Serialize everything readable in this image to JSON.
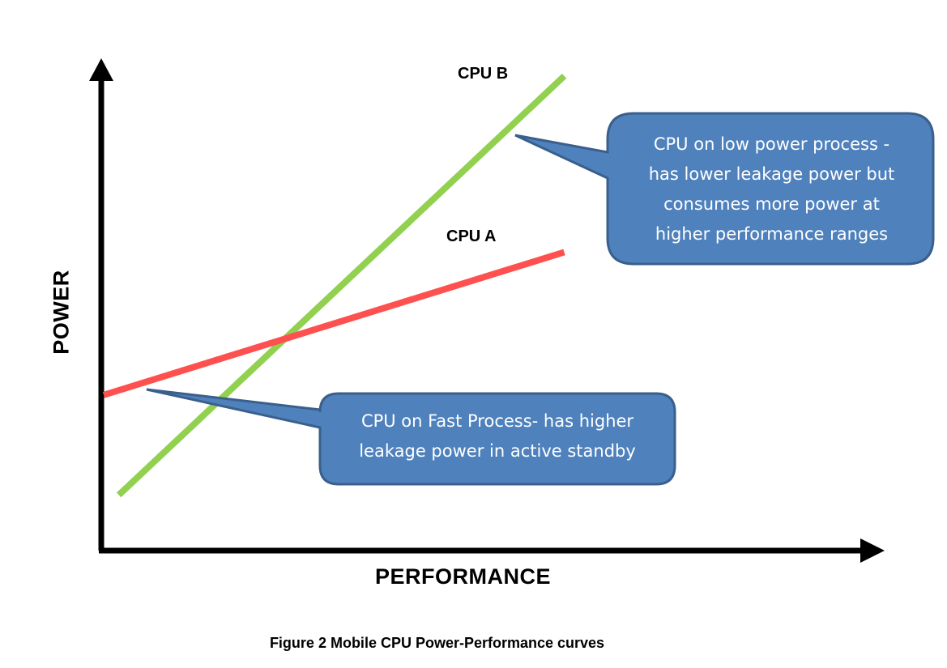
{
  "chart_data": {
    "type": "line",
    "xlabel": "PERFORMANCE",
    "ylabel": "POWER",
    "caption": "Figure 2 Mobile CPU Power-Performance curves",
    "xlim": [
      0,
      100
    ],
    "ylim": [
      0,
      100
    ],
    "series": [
      {
        "name": "CPU B",
        "color": "#92d050",
        "x": [
          2,
          61
        ],
        "y": [
          11,
          99
        ]
      },
      {
        "name": "CPU A",
        "color": "#ff5050",
        "x": [
          0,
          61
        ],
        "y": [
          32,
          62
        ]
      }
    ],
    "annotations": [
      {
        "text": "CPU on low power process - has lower leakage power but consumes more power at higher performance ranges",
        "lines": [
          "CPU on low power process -",
          "has lower leakage power but",
          "consumes more power at",
          "higher performance ranges"
        ],
        "target_series": "CPU B"
      },
      {
        "text": "CPU on Fast Process- has higher leakage power in active standby",
        "lines": [
          "CPU on Fast Process- has higher",
          "leakage power in active standby"
        ],
        "target_series": "CPU A"
      }
    ]
  },
  "colors": {
    "callout_fill": "#4f81bd",
    "callout_stroke": "#3a5f8c",
    "axis": "#000000"
  }
}
